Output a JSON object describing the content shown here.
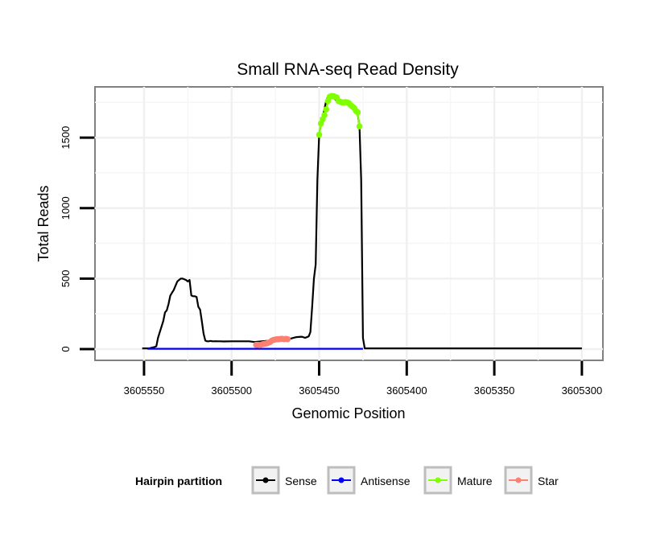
{
  "chart_data": {
    "type": "line",
    "title": "Small RNA-seq Read Density",
    "xlabel": "Genomic Position",
    "ylabel": "Total Reads",
    "x_reversed": true,
    "xlim": [
      3605578,
      3605288
    ],
    "ylim": [
      -80,
      1860
    ],
    "x_ticks": [
      3605550,
      3605500,
      3605450,
      3605400,
      3605350,
      3605300
    ],
    "x_tick_labels": [
      "3605550",
      "3605500",
      "3605450",
      "3605400",
      "3605350",
      "3605300"
    ],
    "y_ticks": [
      0,
      500,
      1000,
      1500
    ],
    "y_tick_labels": [
      "0",
      "500",
      "1000",
      "1500"
    ],
    "grid": true,
    "legend": {
      "title": "Hairpin partition",
      "placement": "bottom",
      "entries": [
        {
          "name": "Sense",
          "color": "#000000"
        },
        {
          "name": "Antisense",
          "color": "#0000ff"
        },
        {
          "name": "Mature",
          "color": "#7fff00"
        },
        {
          "name": "Star",
          "color": "#fa8072"
        }
      ]
    },
    "series": [
      {
        "name": "Sense",
        "color": "#000000",
        "marker": false,
        "x": [
          3605551,
          3605547,
          3605545,
          3605544,
          3605543,
          3605542,
          3605541,
          3605540,
          3605539,
          3605538,
          3605537,
          3605536,
          3605535,
          3605534,
          3605533,
          3605532,
          3605531,
          3605530,
          3605529,
          3605528,
          3605527,
          3605526,
          3605525,
          3605524,
          3605523,
          3605522,
          3605521,
          3605520,
          3605519,
          3605518,
          3605517,
          3605516,
          3605515,
          3605514,
          3605513,
          3605512,
          3605511,
          3605510,
          3605509,
          3605508,
          3605507,
          3605506,
          3605505,
          3605500,
          3605495,
          3605490,
          3605487,
          3605470,
          3605466,
          3605463,
          3605460,
          3605458,
          3605456,
          3605455,
          3605454,
          3605453,
          3605452,
          3605451,
          3605450,
          3605449,
          3605448,
          3605447,
          3605446,
          3605445,
          3605444,
          3605442,
          3605440,
          3605436,
          3605432,
          3605429,
          3605428,
          3605427,
          3605426,
          3605425,
          3605424,
          3605300
        ],
        "y": [
          5,
          5,
          12,
          15,
          20,
          80,
          120,
          160,
          200,
          260,
          275,
          320,
          380,
          400,
          420,
          450,
          480,
          490,
          500,
          500,
          495,
          490,
          480,
          490,
          380,
          375,
          375,
          370,
          300,
          280,
          200,
          110,
          60,
          55,
          55,
          58,
          55,
          55,
          56,
          55,
          55,
          55,
          54,
          55,
          55,
          55,
          50,
          70,
          75,
          85,
          88,
          80,
          90,
          120,
          300,
          500,
          600,
          1200,
          1520,
          1600,
          1640,
          1700,
          1760,
          1790,
          1795,
          1785,
          1760,
          1750,
          1720,
          1690,
          1670,
          1580,
          1200,
          80,
          5,
          5
        ]
      },
      {
        "name": "Antisense",
        "color": "#0000ff",
        "marker": false,
        "x": [
          3605548,
          3605425
        ],
        "y": [
          2,
          2
        ]
      },
      {
        "name": "Mature",
        "color": "#7fff00",
        "marker": true,
        "x": [
          3605450,
          3605449,
          3605448,
          3605447,
          3605446,
          3605445,
          3605444,
          3605443,
          3605442,
          3605441,
          3605440,
          3605439,
          3605438,
          3605437,
          3605436,
          3605435,
          3605434,
          3605433,
          3605432,
          3605431,
          3605430,
          3605429,
          3605428,
          3605427
        ],
        "y": [
          1520,
          1600,
          1630,
          1660,
          1700,
          1760,
          1790,
          1795,
          1795,
          1790,
          1785,
          1760,
          1755,
          1750,
          1750,
          1752,
          1750,
          1745,
          1730,
          1720,
          1710,
          1690,
          1680,
          1580
        ]
      },
      {
        "name": "Star",
        "color": "#fa8072",
        "marker": true,
        "x": [
          3605486,
          3605485,
          3605484,
          3605483,
          3605482,
          3605481,
          3605480,
          3605479,
          3605478,
          3605477,
          3605476,
          3605475,
          3605474,
          3605473,
          3605472,
          3605471,
          3605470,
          3605469,
          3605468
        ],
        "y": [
          30,
          30,
          28,
          32,
          35,
          38,
          40,
          45,
          50,
          60,
          65,
          68,
          70,
          70,
          72,
          72,
          70,
          72,
          70
        ]
      }
    ]
  }
}
